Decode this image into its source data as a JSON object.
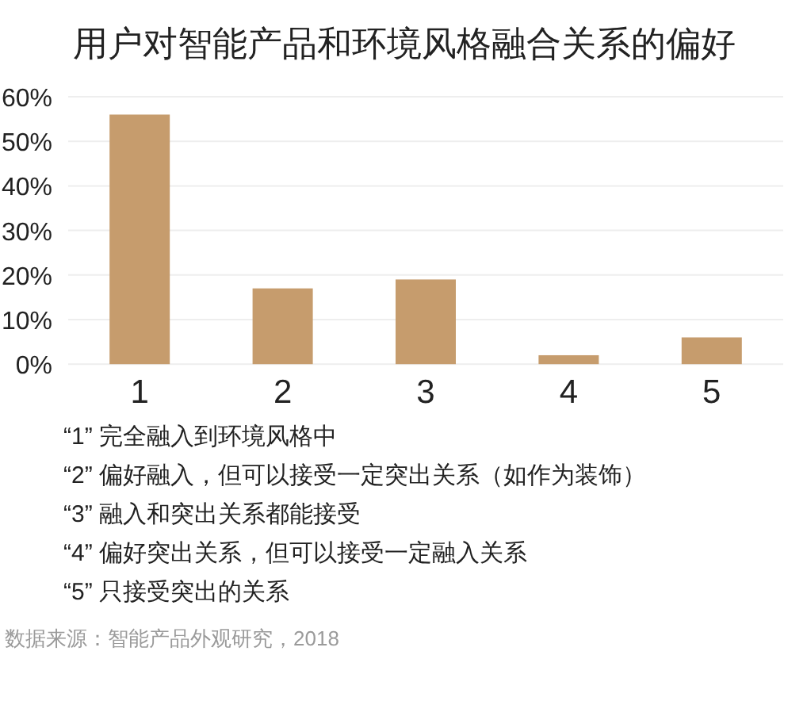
{
  "chart_data": {
    "type": "bar",
    "title": "用户对智能产品和环境风格融合关系的偏好",
    "categories": [
      "1",
      "2",
      "3",
      "4",
      "5"
    ],
    "values": [
      56,
      17,
      19,
      2,
      6
    ],
    "color": "#c69c6d",
    "ylim": [
      0,
      60
    ],
    "yticks": [
      {
        "value": 0,
        "label": "0%"
      },
      {
        "value": 10,
        "label": "10%"
      },
      {
        "value": 20,
        "label": "20%"
      },
      {
        "value": 30,
        "label": "30%"
      },
      {
        "value": 40,
        "label": "40%"
      },
      {
        "value": 50,
        "label": "50%"
      },
      {
        "value": 60,
        "label": "60%"
      }
    ],
    "grid": "y",
    "annotations": [
      "“1” 完全融入到环境风格中",
      "“2” 偏好融入，但可以接受一定突出关系（如作为装饰）",
      "“3” 融入和突出关系都能接受",
      "“4” 偏好突出关系，但可以接受一定融入关系",
      "“5” 只接受突出的关系",
      "数据来源：智能产品外观研究，2018"
    ]
  }
}
